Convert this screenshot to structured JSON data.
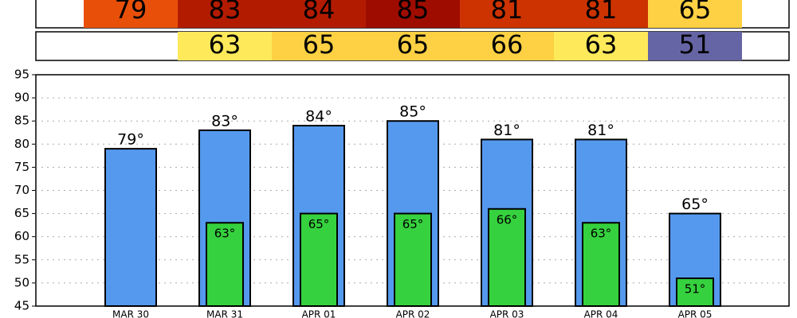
{
  "chart_data": {
    "type": "bar",
    "categories": [
      "MAR 30",
      "MAR 31",
      "APR 01",
      "APR 02",
      "APR 03",
      "APR 04",
      "APR 05"
    ],
    "series": [
      {
        "color": "#5599ee",
        "values": [
          79,
          83,
          84,
          85,
          81,
          81,
          65
        ],
        "value_labels": [
          "79°",
          "83°",
          "84°",
          "85°",
          "81°",
          "81°",
          "65°"
        ],
        "cell_colors": [
          "#e8500a",
          "#b31b00",
          "#b31b00",
          "#9e0c00",
          "#cc3300",
          "#cc3300",
          "#fdd143"
        ]
      },
      {
        "color": "#36d13e",
        "values": [
          null,
          63,
          65,
          65,
          66,
          63,
          51
        ],
        "value_labels": [
          null,
          "63°",
          "65°",
          "65°",
          "66°",
          "63°",
          "51°"
        ],
        "cell_colors": [
          null,
          "#fde95a",
          "#fdd143",
          "#fdd143",
          "#fdd143",
          "#fde95a",
          "#6565a5"
        ]
      }
    ],
    "ylim": [
      45,
      95
    ],
    "yticks": [
      45,
      50,
      55,
      60,
      65,
      70,
      75,
      80,
      85,
      90,
      95
    ],
    "grid": true
  }
}
